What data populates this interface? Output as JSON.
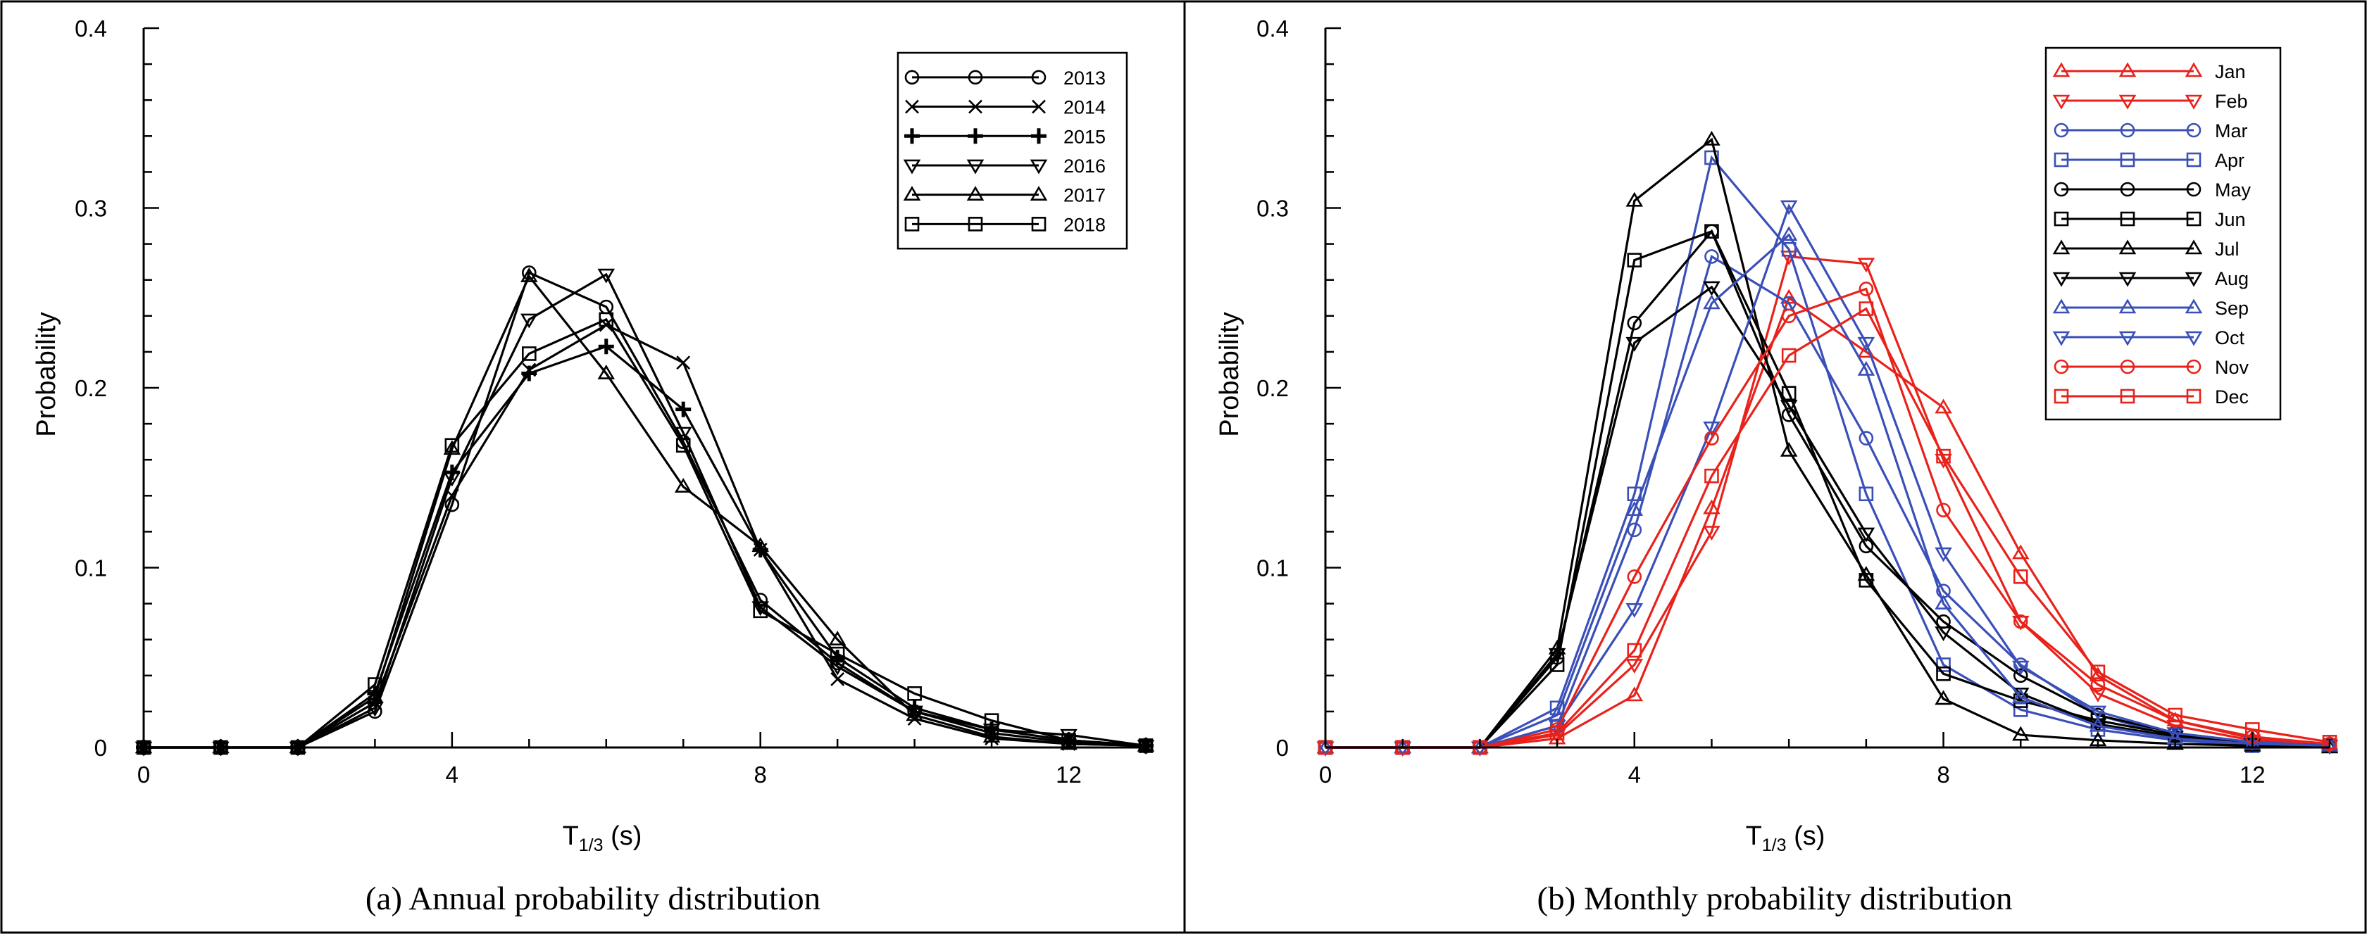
{
  "colors": {
    "black": "#000000",
    "red": "#e8221b",
    "blue": "#3a4fb8"
  },
  "chart_data": [
    {
      "type": "line",
      "caption": "(a) Annual probability distribution",
      "xlabel_main": "T",
      "xlabel_sub": "1/3",
      "xlabel_unit": " (s)",
      "ylabel": "Probability",
      "xlim": [
        0,
        13
      ],
      "ylim": [
        0,
        0.4
      ],
      "xticks": [
        0,
        4,
        8,
        12
      ],
      "xtick_labels": [
        "0",
        "4",
        "8",
        "12"
      ],
      "yticks": [
        0,
        0.1,
        0.2,
        0.3,
        0.4
      ],
      "ytick_labels": [
        "0",
        "0.1",
        "0.2",
        "0.3",
        "0.4"
      ],
      "legend_position": "top-right",
      "x": [
        0,
        1,
        2,
        3,
        4,
        5,
        6,
        7,
        8,
        9,
        10,
        11,
        12,
        13
      ],
      "series": [
        {
          "name": "2013",
          "marker": "circle",
          "color": "#000000",
          "values": [
            0,
            0,
            0,
            0.02,
            0.135,
            0.264,
            0.245,
            0.17,
            0.082,
            0.047,
            0.02,
            0.008,
            0.003,
            0.001
          ]
        },
        {
          "name": "2014",
          "marker": "x",
          "color": "#000000",
          "values": [
            0,
            0,
            0,
            0.025,
            0.14,
            0.21,
            0.235,
            0.214,
            0.11,
            0.038,
            0.016,
            0.005,
            0.002,
            0.001
          ]
        },
        {
          "name": "2015",
          "marker": "plus",
          "color": "#000000",
          "values": [
            0,
            0,
            0,
            0.03,
            0.153,
            0.208,
            0.223,
            0.188,
            0.11,
            0.05,
            0.022,
            0.01,
            0.004,
            0.001
          ]
        },
        {
          "name": "2016",
          "marker": "triangle-down",
          "color": "#000000",
          "values": [
            0,
            0,
            0,
            0.022,
            0.15,
            0.238,
            0.263,
            0.175,
            0.078,
            0.045,
            0.02,
            0.01,
            0.007,
            0.001
          ]
        },
        {
          "name": "2017",
          "marker": "triangle-up",
          "color": "#000000",
          "values": [
            0,
            0,
            0,
            0.028,
            0.166,
            0.262,
            0.208,
            0.145,
            0.112,
            0.06,
            0.018,
            0.006,
            0.002,
            0.001
          ]
        },
        {
          "name": "2018",
          "marker": "square",
          "color": "#000000",
          "values": [
            0,
            0,
            0,
            0.035,
            0.168,
            0.219,
            0.238,
            0.168,
            0.076,
            0.052,
            0.03,
            0.015,
            0.004,
            0.001
          ]
        }
      ]
    },
    {
      "type": "line",
      "caption": "(b) Monthly probability distribution",
      "xlabel_main": "T",
      "xlabel_sub": "1/3",
      "xlabel_unit": " (s)",
      "ylabel": "Probability",
      "xlim": [
        0,
        13
      ],
      "ylim": [
        0,
        0.4
      ],
      "xticks": [
        0,
        4,
        8,
        12
      ],
      "xtick_labels": [
        "0",
        "4",
        "8",
        "12"
      ],
      "yticks": [
        0,
        0.1,
        0.2,
        0.3,
        0.4
      ],
      "ytick_labels": [
        "0",
        "0.1",
        "0.2",
        "0.3",
        "0.4"
      ],
      "legend_position": "top-right",
      "x": [
        0,
        1,
        2,
        3,
        4,
        5,
        6,
        7,
        8,
        9,
        10,
        11,
        12,
        13
      ],
      "series": [
        {
          "name": "Jan",
          "marker": "triangle-up",
          "color": "#e8221b",
          "values": [
            0,
            0,
            0,
            0.005,
            0.029,
            0.133,
            0.25,
            0.22,
            0.189,
            0.108,
            0.04,
            0.015,
            0.005,
            0.002
          ]
        },
        {
          "name": "Feb",
          "marker": "triangle-down",
          "color": "#e8221b",
          "values": [
            0,
            0,
            0,
            0.007,
            0.046,
            0.12,
            0.273,
            0.269,
            0.16,
            0.07,
            0.03,
            0.012,
            0.004,
            0.001
          ]
        },
        {
          "name": "Mar",
          "marker": "circle",
          "color": "#3a4fb8",
          "values": [
            0,
            0,
            0,
            0.012,
            0.121,
            0.273,
            0.247,
            0.172,
            0.087,
            0.046,
            0.018,
            0.006,
            0.002,
            0.001
          ]
        },
        {
          "name": "Apr",
          "marker": "square",
          "color": "#3a4fb8",
          "values": [
            0,
            0,
            0,
            0.022,
            0.141,
            0.328,
            0.277,
            0.141,
            0.046,
            0.021,
            0.01,
            0.004,
            0.001,
            0.001
          ]
        },
        {
          "name": "May",
          "marker": "circle",
          "color": "#000000",
          "values": [
            0,
            0,
            0,
            0.05,
            0.236,
            0.287,
            0.185,
            0.112,
            0.07,
            0.04,
            0.018,
            0.008,
            0.003,
            0.001
          ]
        },
        {
          "name": "Jun",
          "marker": "square",
          "color": "#000000",
          "values": [
            0,
            0,
            0,
            0.046,
            0.271,
            0.287,
            0.197,
            0.093,
            0.041,
            0.026,
            0.015,
            0.007,
            0.002,
            0.001
          ]
        },
        {
          "name": "Jul",
          "marker": "triangle-up",
          "color": "#000000",
          "values": [
            0,
            0,
            0,
            0.055,
            0.304,
            0.338,
            0.165,
            0.096,
            0.027,
            0.007,
            0.004,
            0.002,
            0.001,
            0.0
          ]
        },
        {
          "name": "Aug",
          "marker": "triangle-down",
          "color": "#000000",
          "values": [
            0,
            0,
            0,
            0.052,
            0.225,
            0.256,
            0.19,
            0.119,
            0.064,
            0.03,
            0.013,
            0.006,
            0.002,
            0.001
          ]
        },
        {
          "name": "Sep",
          "marker": "triangle-up",
          "color": "#3a4fb8",
          "values": [
            0,
            0,
            0,
            0.018,
            0.132,
            0.247,
            0.285,
            0.21,
            0.08,
            0.028,
            0.012,
            0.005,
            0.002,
            0.001
          ]
        },
        {
          "name": "Oct",
          "marker": "triangle-down",
          "color": "#3a4fb8",
          "values": [
            0,
            0,
            0,
            0.012,
            0.077,
            0.178,
            0.301,
            0.225,
            0.108,
            0.045,
            0.02,
            0.008,
            0.003,
            0.001
          ]
        },
        {
          "name": "Nov",
          "marker": "circle",
          "color": "#e8221b",
          "values": [
            0,
            0,
            0,
            0.01,
            0.095,
            0.172,
            0.24,
            0.255,
            0.132,
            0.07,
            0.035,
            0.015,
            0.006,
            0.002
          ]
        },
        {
          "name": "Dec",
          "marker": "square",
          "color": "#e8221b",
          "values": [
            0,
            0,
            0,
            0.008,
            0.054,
            0.151,
            0.218,
            0.244,
            0.162,
            0.095,
            0.042,
            0.018,
            0.01,
            0.003
          ]
        }
      ]
    }
  ]
}
